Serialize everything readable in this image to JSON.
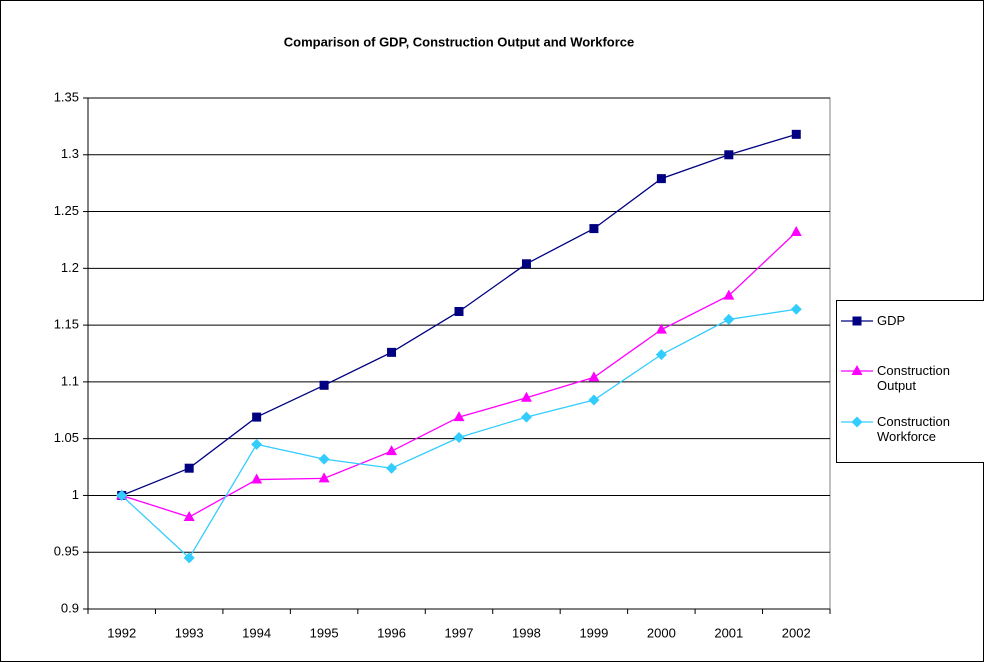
{
  "chart_data": {
    "type": "line",
    "title": "Comparison of GDP, Construction Output and Workforce",
    "categories": [
      "1992",
      "1993",
      "1994",
      "1995",
      "1996",
      "1997",
      "1998",
      "1999",
      "2000",
      "2001",
      "2002"
    ],
    "series": [
      {
        "name": "GDP",
        "color": "#000080",
        "marker": "square",
        "values": [
          1.0,
          1.024,
          1.069,
          1.097,
          1.126,
          1.162,
          1.204,
          1.235,
          1.279,
          1.3,
          1.318
        ]
      },
      {
        "name": "Construction Output",
        "color": "#ff00ff",
        "marker": "triangle",
        "values": [
          1.0,
          0.981,
          1.014,
          1.015,
          1.039,
          1.069,
          1.086,
          1.104,
          1.146,
          1.176,
          1.232
        ]
      },
      {
        "name": "Construction Workforce",
        "color": "#33ccff",
        "marker": "diamond",
        "values": [
          1.0,
          0.945,
          1.045,
          1.032,
          1.024,
          1.051,
          1.069,
          1.084,
          1.124,
          1.155,
          1.164
        ]
      }
    ],
    "ylim": [
      0.9,
      1.35
    ],
    "yticks": [
      0.9,
      0.95,
      1,
      1.05,
      1.1,
      1.15,
      1.2,
      1.25,
      1.3,
      1.35
    ],
    "grid": true,
    "legend": "right"
  }
}
